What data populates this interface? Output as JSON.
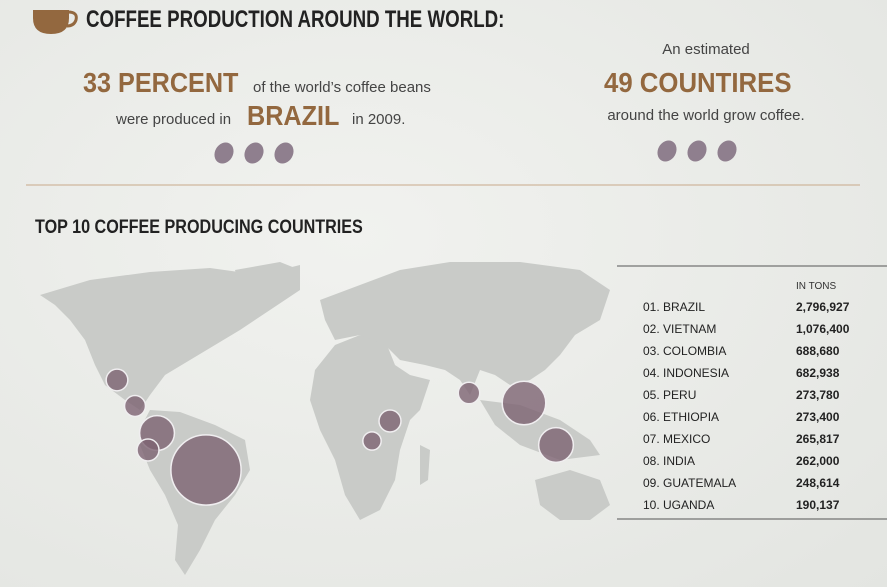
{
  "header": {
    "title": "COFFEE PRODUCTION AROUND THE WORLD:"
  },
  "stat_brazil": {
    "headline": "33 PERCENT",
    "line1": "of the world’s coffee beans",
    "line2": "were produced in",
    "highlight": "BRAZIL",
    "line3": "in 2009."
  },
  "stat_countries": {
    "intro": "An estimated",
    "headline": "49 COUNTIRES",
    "line": "around the world grow coffee."
  },
  "section_title": "TOP 10 COFFEE PRODUCING COUNTRIES",
  "table": {
    "unit": "IN TONS",
    "rows": [
      [
        "01. BRAZIL",
        "2,796,927"
      ],
      [
        "02. VIETNAM",
        "1,076,400"
      ],
      [
        "03. COLOMBIA",
        "688,680"
      ],
      [
        "04. INDONESIA",
        "682,938"
      ],
      [
        "05. PERU",
        "273,780"
      ],
      [
        "06. ETHIOPIA",
        "273,400"
      ],
      [
        "07. MEXICO",
        "265,817"
      ],
      [
        "08. INDIA",
        "262,000"
      ],
      [
        "09. GUATEMALA",
        "248,614"
      ],
      [
        "10. UGANDA",
        "190,137"
      ]
    ]
  }
}
